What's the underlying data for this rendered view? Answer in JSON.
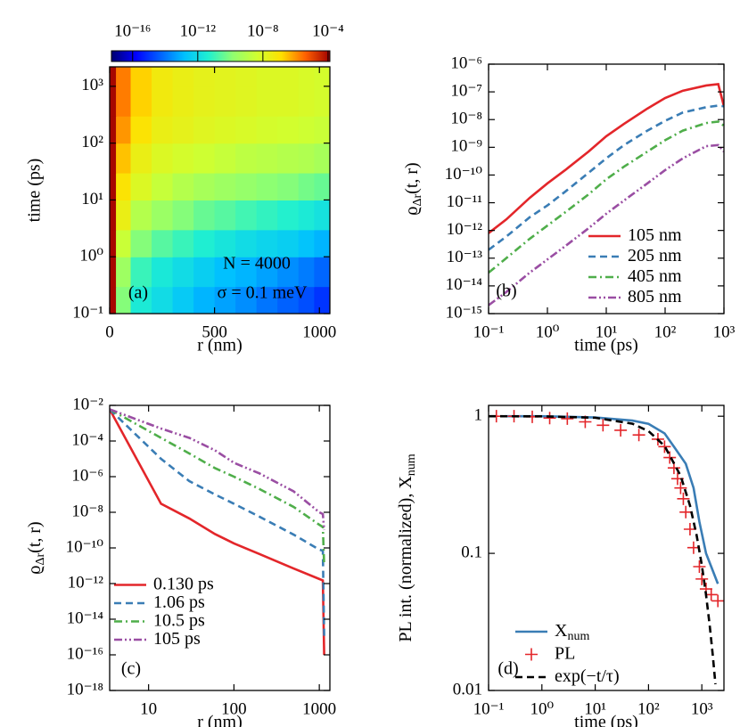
{
  "chart_data": [
    {
      "type": "heatmap",
      "panel_label": "(a)",
      "xlabel": "r (nm)",
      "ylabel": "time (ps)",
      "annotations": [
        "N = 4000",
        "σ = 0.1 meV"
      ],
      "xbins": [
        0,
        30,
        100,
        200,
        300,
        400,
        500,
        600,
        700,
        800,
        900,
        975,
        1050
      ],
      "ybins": [
        0.1,
        0.3,
        1,
        3,
        10,
        30,
        100,
        300,
        1000,
        2200
      ],
      "z": [
        [
          0.0001,
          1e-10,
          3e-12,
          1e-12,
          3e-13,
          1e-13,
          5e-14,
          2.5e-14,
          1e-14,
          5e-15,
          2.5e-15,
          1e-15
        ],
        [
          0.0001,
          3e-10,
          1e-11,
          2.5e-12,
          1e-12,
          4e-13,
          1.6e-13,
          1e-13,
          5e-14,
          2.5e-14,
          1.3e-14,
          6e-15
        ],
        [
          0.0001,
          3e-09,
          1e-10,
          2.5e-11,
          1e-11,
          4e-12,
          2e-12,
          1e-12,
          6e-13,
          4e-13,
          2e-13,
          1e-13
        ],
        [
          0.0001,
          3e-08,
          1e-09,
          2.5e-10,
          1e-10,
          4e-11,
          2.5e-11,
          1.3e-11,
          8e-12,
          5e-12,
          3e-12,
          1.6e-12
        ],
        [
          0.0001,
          1e-07,
          1e-08,
          2.5e-09,
          1e-09,
          5e-10,
          3e-10,
          2e-10,
          1.3e-10,
          1e-10,
          6e-11,
          4e-11
        ],
        [
          0.0001,
          3e-07,
          3e-08,
          1e-08,
          6e-09,
          4e-09,
          2.5e-09,
          1.6e-09,
          1.3e-09,
          1e-09,
          8e-10,
          5e-10
        ],
        [
          0.0001,
          1e-06,
          1e-07,
          3e-08,
          2e-08,
          1.3e-08,
          1e-08,
          8e-09,
          6e-09,
          5e-09,
          4e-09,
          3e-09
        ],
        [
          0.0001,
          2e-06,
          2e-07,
          5e-08,
          3e-08,
          2e-08,
          1.6e-08,
          1.3e-08,
          1e-08,
          1e-08,
          8e-09,
          6e-09
        ],
        [
          0.0001,
          2e-06,
          2e-07,
          5e-08,
          3e-08,
          2e-08,
          1.6e-08,
          1.3e-08,
          1e-08,
          1e-08,
          8e-09,
          6e-09
        ]
      ],
      "xlim": [
        0,
        1050
      ],
      "ylim": [
        0.1,
        2200
      ],
      "xlog": false,
      "ylog": true,
      "xticks": [
        0,
        500,
        1000
      ],
      "yticks": [
        {
          "value": 0.1,
          "label": "10⁻¹"
        },
        {
          "value": 1,
          "label": "10⁰"
        },
        {
          "value": 10,
          "label": "10¹"
        },
        {
          "value": 100,
          "label": "10²"
        },
        {
          "value": 1000,
          "label": "10³"
        }
      ],
      "clim": [
        5e-18,
        0.00013
      ],
      "clog": true,
      "cticks": [
        {
          "value": 1e-16,
          "label": "10⁻¹⁶"
        },
        {
          "value": 1e-12,
          "label": "10⁻¹²"
        },
        {
          "value": 1e-08,
          "label": "10⁻⁸"
        },
        {
          "value": 0.0001,
          "label": "10⁻⁴"
        }
      ],
      "colormap": [
        "#000070",
        "#0000ff",
        "#0060ff",
        "#00c0ff",
        "#20f0d0",
        "#90ff70",
        "#d0ff30",
        "#ffe000",
        "#ff6000",
        "#a00000"
      ]
    },
    {
      "type": "line",
      "panel_label": "(b)",
      "xlabel": "time (ps)",
      "ylabel": [
        "ϱ",
        "Δr",
        "(t, r)"
      ],
      "xlog": true,
      "ylog": true,
      "xlim": [
        0.1,
        1000
      ],
      "ylim": [
        1e-15,
        1e-06
      ],
      "xticks": [
        {
          "value": 0.1,
          "label": "10⁻¹"
        },
        {
          "value": 1,
          "label": "10⁰"
        },
        {
          "value": 10,
          "label": "10¹"
        },
        {
          "value": 100,
          "label": "10²"
        },
        {
          "value": 1000,
          "label": "10³"
        }
      ],
      "yticks": [
        {
          "value": 1e-06,
          "label": "10⁻⁶"
        },
        {
          "value": 1e-07,
          "label": "10⁻⁷"
        },
        {
          "value": 1e-08,
          "label": "10⁻⁸"
        },
        {
          "value": 1e-09,
          "label": "10⁻⁹"
        },
        {
          "value": 1e-10,
          "label": "10⁻¹⁰"
        },
        {
          "value": 1e-11,
          "label": "10⁻¹¹"
        },
        {
          "value": 1e-12,
          "label": "10⁻¹²"
        },
        {
          "value": 1e-13,
          "label": "10⁻¹³"
        },
        {
          "value": 1e-14,
          "label": "10⁻¹⁴"
        },
        {
          "value": 1e-15,
          "label": "10⁻¹⁵"
        }
      ],
      "legend": "lower right",
      "x": [
        0.1,
        0.2,
        0.5,
        1,
        2,
        5,
        10,
        20,
        50,
        100,
        200,
        500,
        800,
        1000
      ],
      "series": [
        {
          "name": "105 nm",
          "color": "#e3262a",
          "style": "solid",
          "values": [
            8e-13,
            2.5e-12,
            1.5e-11,
            5e-11,
            1.5e-10,
            7e-10,
            2.5e-09,
            7e-09,
            2.5e-08,
            6e-08,
            1.1e-07,
            1.7e-07,
            1.9e-07,
            3e-08
          ]
        },
        {
          "name": "205 nm",
          "color": "#3a7db5",
          "style": "dashed",
          "values": [
            2e-13,
            6e-13,
            3e-12,
            8e-12,
            2.5e-11,
            1.2e-10,
            4e-10,
            1.2e-09,
            4e-09,
            9e-09,
            1.8e-08,
            2.8e-08,
            3.2e-08,
            3e-08
          ]
        },
        {
          "name": "405 nm",
          "color": "#4fae4a",
          "style": "dashdot",
          "values": [
            3e-14,
            1e-13,
            5e-13,
            1.5e-12,
            4.5e-12,
            2e-11,
            7e-11,
            2e-10,
            7e-10,
            1.8e-09,
            4e-09,
            7.5e-09,
            8.5e-09,
            6e-09
          ]
        },
        {
          "name": "805 nm",
          "color": "#9a4ea3",
          "style": "dashdotdot",
          "values": [
            2e-15,
            6e-15,
            3e-14,
            9e-14,
            2.7e-13,
            1.2e-12,
            4e-12,
            1.2e-11,
            5e-11,
            1.5e-10,
            4e-10,
            1.1e-09,
            1.2e-09,
            7e-10
          ]
        }
      ]
    },
    {
      "type": "line",
      "panel_label": "(c)",
      "xlabel": "r (nm)",
      "ylabel": [
        "ϱ",
        "Δr",
        "(t, r)"
      ],
      "xlog": true,
      "ylog": true,
      "xlim": [
        3.5,
        1330
      ],
      "ylim": [
        1e-18,
        0.01
      ],
      "xticks": [
        10,
        100,
        1000
      ],
      "yticks": [
        {
          "value": 0.01,
          "label": "10⁻²"
        },
        {
          "value": 0.0001,
          "label": "10⁻⁴"
        },
        {
          "value": 1e-06,
          "label": "10⁻⁶"
        },
        {
          "value": 1e-08,
          "label": "10⁻⁸"
        },
        {
          "value": 1e-10,
          "label": "10⁻¹⁰"
        },
        {
          "value": 1e-12,
          "label": "10⁻¹²"
        },
        {
          "value": 1e-14,
          "label": "10⁻¹⁴"
        },
        {
          "value": 1e-16,
          "label": "10⁻¹⁶"
        },
        {
          "value": 1e-18,
          "label": "10⁻¹⁸"
        }
      ],
      "legend": "lower left",
      "x": [
        3.5,
        14,
        30,
        60,
        100,
        200,
        500,
        1000,
        1100,
        1140
      ],
      "series": [
        {
          "name": "0.130 ps",
          "color": "#e3262a",
          "style": "solid",
          "values": [
            0.006,
            3e-08,
            4.5e-09,
            6e-10,
            1.8e-10,
            4.5e-11,
            7e-12,
            1.8e-12,
            1.5e-12,
            1e-16
          ]
        },
        {
          "name": "1.06 ps",
          "color": "#3a7db5",
          "style": "dashed",
          "values": [
            0.006,
            1e-05,
            5.6e-07,
            1e-07,
            3e-08,
            5.6e-09,
            5.6e-10,
            8e-11,
            7e-11,
            1e-15
          ]
        },
        {
          "name": "10.5 ps",
          "color": "#4fae4a",
          "style": "dashdot",
          "values": [
            0.006,
            0.00015,
            2e-05,
            3e-06,
            1e-06,
            2e-07,
            2e-08,
            2e-09,
            1.5e-09,
            1e-11
          ]
        },
        {
          "name": "105 ps",
          "color": "#9a4ea3",
          "style": "dashdotdot",
          "values": [
            0.006,
            0.0005,
            0.00015,
            3e-05,
            6e-06,
            1.5e-06,
            1.5e-07,
            1e-08,
            8e-09,
            1e-09
          ]
        }
      ]
    },
    {
      "type": "line",
      "panel_label": "(d)",
      "xlabel": "time (ps)",
      "ylabel": [
        "PL int. (normalized), X",
        "num",
        ""
      ],
      "xlog": true,
      "ylog": true,
      "xlim": [
        0.1,
        2600
      ],
      "ylim": [
        0.01,
        1.2
      ],
      "xticks": [
        {
          "value": 0.1,
          "label": "10⁻¹"
        },
        {
          "value": 1,
          "label": "10⁰"
        },
        {
          "value": 10,
          "label": "10¹"
        },
        {
          "value": 100,
          "label": "10²"
        },
        {
          "value": 1000,
          "label": "10³"
        }
      ],
      "yticks": [
        1,
        0.1,
        0.01
      ],
      "legend": "lower left",
      "series": [
        {
          "name": "X",
          "name_sub": "num",
          "color": "#3a7db5",
          "style": "solid",
          "x": [
            0.2,
            1,
            10,
            50,
            100,
            200,
            300,
            500,
            700,
            900,
            1000,
            1200,
            1500,
            2000
          ],
          "values": [
            1,
            1,
            0.98,
            0.93,
            0.88,
            0.75,
            0.6,
            0.45,
            0.3,
            0.17,
            0.14,
            0.1,
            0.08,
            0.06
          ]
        },
        {
          "name": "PL",
          "color": "#e3262a",
          "style": "markers",
          "x": [
            0.14,
            0.3,
            0.66,
            1.4,
            3,
            6.5,
            14,
            30,
            66,
            150,
            200,
            250,
            300,
            350,
            400,
            450,
            500,
            600,
            700,
            900,
            1000,
            1200,
            1500,
            2000
          ],
          "values": [
            1,
            1,
            0.99,
            0.97,
            0.96,
            0.91,
            0.86,
            0.79,
            0.73,
            0.68,
            0.6,
            0.5,
            0.42,
            0.35,
            0.3,
            0.25,
            0.2,
            0.15,
            0.11,
            0.08,
            0.065,
            0.055,
            0.05,
            0.045
          ]
        },
        {
          "name": "exp(−t/τ)",
          "color": "#000000",
          "style": "dashed",
          "x": [
            0.1,
            1,
            10,
            50,
            100,
            200,
            400,
            600,
            800,
            1000,
            1200,
            1400,
            1600,
            1800
          ],
          "values": [
            1,
            0.9975,
            0.975,
            0.882,
            0.779,
            0.607,
            0.368,
            0.223,
            0.135,
            0.082,
            0.0498,
            0.0302,
            0.0183,
            0.0111
          ]
        }
      ]
    }
  ]
}
